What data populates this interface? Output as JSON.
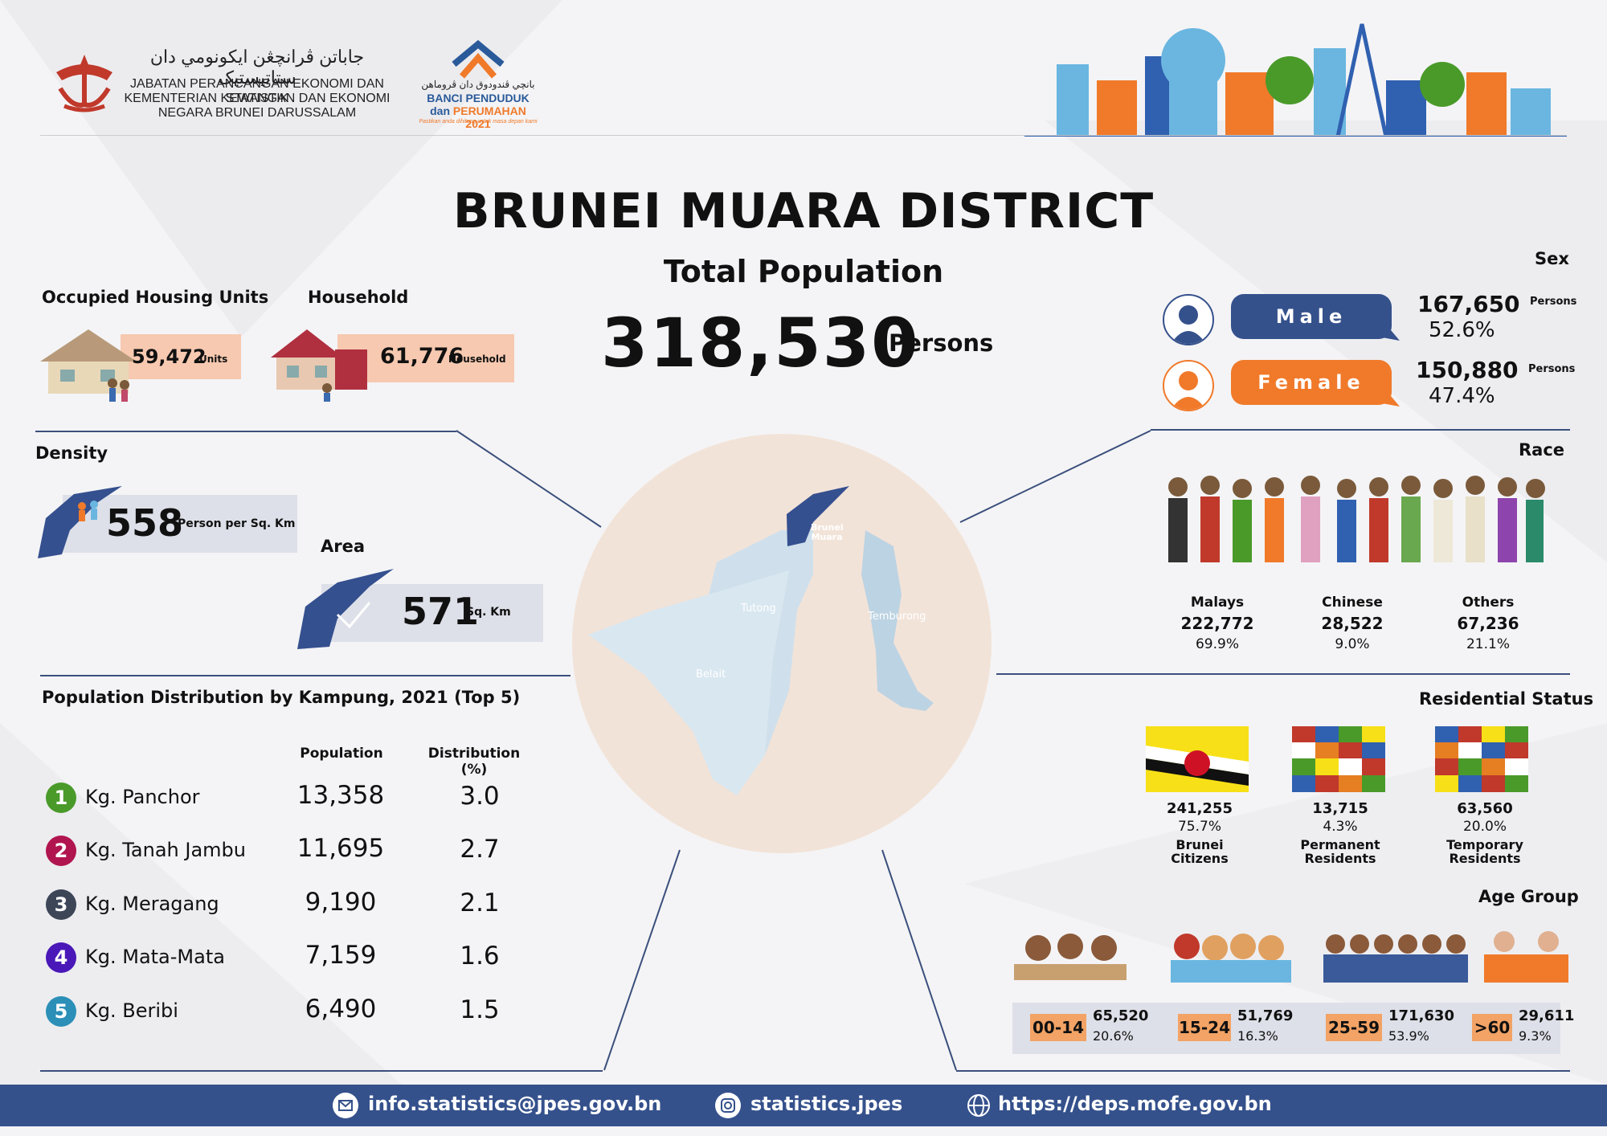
{
  "header": {
    "dept_arabic": "جاباتن ڤرانچڠن ايکونومي دان ستاتيستيک",
    "dept_line1": "JABATAN PERANCANGAN EKONOMI DAN STATISTIK",
    "dept_line2": "KEMENTERIAN KEWANGAN DAN EKONOMI",
    "dept_line3": "NEGARA BRUNEI DARUSSALAM",
    "census_arabic": "بانچي ڤندودوق دان ڤروماهن",
    "census_line1": "BANCI PENDUDUK",
    "census_line2a": "dan ",
    "census_line2b": "PERUMAHAN 2021",
    "census_tagline": "Pastikan anda dihitung untuk masa depan kami"
  },
  "title": "BRUNEI MUARA DISTRICT",
  "total_population": {
    "label": "Total Population",
    "value": "318,530",
    "unit": "Persons"
  },
  "housing": {
    "label": "Occupied Housing Units",
    "value": "59,472",
    "unit": "Units"
  },
  "household": {
    "label": "Household",
    "value": "61,776",
    "unit": "Household"
  },
  "density": {
    "label": "Density",
    "value": "558",
    "unit": "Person per Sq. Km"
  },
  "area": {
    "label": "Area",
    "value": "571",
    "unit": "Sq. Km"
  },
  "map": {
    "brunei_muara": "Brunei Muara",
    "tutong": "Tutong",
    "temburong": "Temburong",
    "belait": "Belait"
  },
  "sex": {
    "label": "Sex",
    "male": {
      "label": "Male",
      "value": "167,650",
      "unit": "Persons",
      "pct": "52.6%"
    },
    "female": {
      "label": "Female",
      "value": "150,880",
      "unit": "Persons",
      "pct": "47.4%"
    }
  },
  "race": {
    "label": "Race",
    "groups": [
      {
        "name": "Malays",
        "value": "222,772",
        "pct": "69.9%"
      },
      {
        "name": "Chinese",
        "value": "28,522",
        "pct": "9.0%"
      },
      {
        "name": "Others",
        "value": "67,236",
        "pct": "21.1%"
      }
    ]
  },
  "kampung": {
    "title": "Population Distribution by Kampung, 2021 (Top 5)",
    "col_population": "Population",
    "col_distribution": "Distribution (%)",
    "rows": [
      {
        "rank": "1",
        "name": "Kg. Panchor",
        "population": "13,358",
        "distribution": "3.0",
        "color": "#4a9a2a"
      },
      {
        "rank": "2",
        "name": "Kg. Tanah Jambu",
        "population": "11,695",
        "distribution": "2.7",
        "color": "#b0154f"
      },
      {
        "rank": "3",
        "name": "Kg. Meragang",
        "population": "9,190",
        "distribution": "2.1",
        "color": "#3c4657"
      },
      {
        "rank": "4",
        "name": "Kg. Mata-Mata",
        "population": "7,159",
        "distribution": "1.6",
        "color": "#4a18b8"
      },
      {
        "rank": "5",
        "name": "Kg. Beribi",
        "population": "6,490",
        "distribution": "1.5",
        "color": "#2b8fb8"
      }
    ]
  },
  "residential": {
    "label": "Residential Status",
    "groups": [
      {
        "value": "241,255",
        "pct": "75.7%",
        "line1": "Brunei",
        "line2": "Citizens"
      },
      {
        "value": "13,715",
        "pct": "4.3%",
        "line1": "Permanent",
        "line2": "Residents"
      },
      {
        "value": "63,560",
        "pct": "20.0%",
        "line1": "Temporary",
        "line2": "Residents"
      }
    ]
  },
  "age": {
    "label": "Age Group",
    "groups": [
      {
        "range": "00-14",
        "value": "65,520",
        "pct": "20.6%"
      },
      {
        "range": "15-24",
        "value": "51,769",
        "pct": "16.3%"
      },
      {
        "range": "25-59",
        "value": "171,630",
        "pct": "53.9%"
      },
      {
        "range": ">60",
        "value": "29,611",
        "pct": "9.3%"
      }
    ]
  },
  "footer": {
    "email": "info.statistics@jpes.gov.bn",
    "instagram": "statistics.jpes",
    "website": "https://deps.mofe.gov.bn"
  },
  "colors": {
    "navy": "#35518c",
    "orange": "#f07a2a",
    "peach": "#f7c9b0",
    "map_blue": "#35508f",
    "light_box": "#dde0e8"
  }
}
